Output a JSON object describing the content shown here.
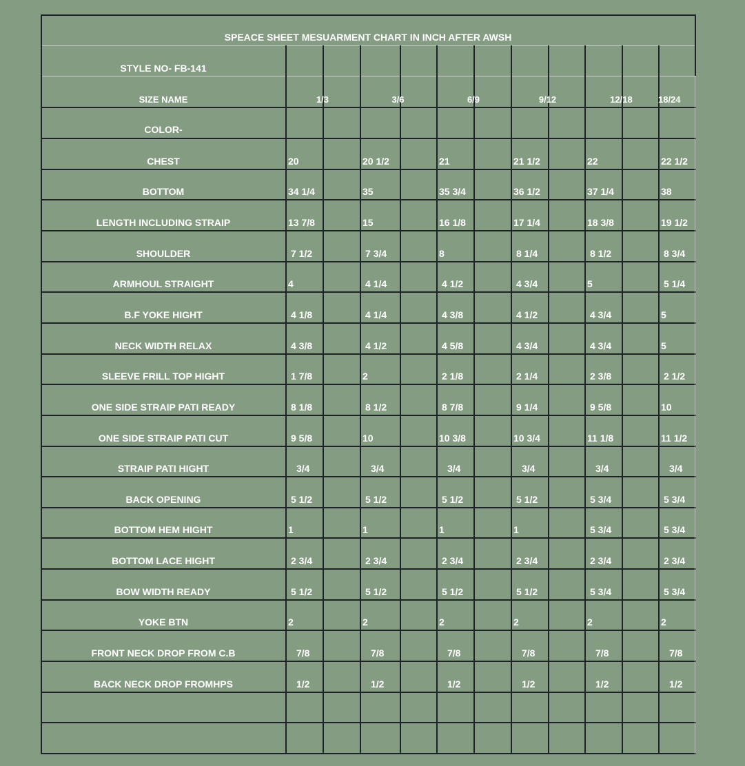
{
  "title": "SPEACE SHEET MESUARMENT CHART IN INCH  AFTER AWSH",
  "style_no": "STYLE NO- FB-141",
  "size_header": "SIZE NAME",
  "sizes": [
    "1/3",
    "3/6",
    "6/9",
    "9/12",
    "12/18",
    "18/24"
  ],
  "color_label": "COLOR-",
  "measurements": [
    {
      "label": "CHEST",
      "values": [
        "20",
        "20 1/2",
        "21",
        "21 1/2",
        "22",
        "22 1/2"
      ]
    },
    {
      "label": "BOTTOM",
      "values": [
        "34 1/4",
        "35",
        "35 3/4",
        "36 1/2",
        "37 1/4",
        "38"
      ]
    },
    {
      "label": "LENGTH INCLUDING STRAIP",
      "values": [
        "13 7/8",
        "15",
        "16 1/8",
        "17 1/4",
        "18 3/8",
        "19 1/2"
      ]
    },
    {
      "label": "SHOULDER",
      "values": [
        "7 1/2",
        "7 3/4",
        "8",
        "8 1/4",
        "8 1/2",
        "8 3/4"
      ]
    },
    {
      "label": "ARMHOUL STRAIGHT",
      "values": [
        "4",
        "4 1/4",
        "4 1/2",
        "4 3/4",
        "5",
        "5 1/4"
      ]
    },
    {
      "label": "B.F YOKE HIGHT",
      "values": [
        "4 1/8",
        "4 1/4",
        "4 3/8",
        "4 1/2",
        "4 3/4",
        "5"
      ]
    },
    {
      "label": "NECK WIDTH RELAX",
      "values": [
        "4 3/8",
        "4 1/2",
        "4 5/8",
        "4 3/4",
        "4 3/4",
        "5"
      ]
    },
    {
      "label": "SLEEVE FRILL TOP HIGHT",
      "values": [
        "1 7/8",
        "2",
        "2 1/8",
        "2 1/4",
        "2 3/8",
        "2 1/2"
      ]
    },
    {
      "label": "ONE SIDE STRAIP PATI READY",
      "values": [
        "8 1/8",
        "8 1/2",
        "8 7/8",
        "9 1/4",
        "9 5/8",
        "10"
      ]
    },
    {
      "label": "ONE SIDE STRAIP PATI CUT",
      "values": [
        "9 5/8",
        "10",
        "10 3/8",
        "10 3/4",
        "11 1/8",
        "11 1/2"
      ]
    },
    {
      "label": "STRAIP PATI HIGHT",
      "values": [
        "3/4",
        "3/4",
        "3/4",
        "3/4",
        "3/4",
        "3/4"
      ]
    },
    {
      "label": "BACK OPENING",
      "values": [
        "5 1/2",
        "5 1/2",
        "5 1/2",
        "5 1/2",
        "5 3/4",
        "5 3/4"
      ]
    },
    {
      "label": "BOTTOM HEM HIGHT",
      "values": [
        "1",
        "1",
        "1",
        "1",
        "5 3/4",
        "5 3/4"
      ]
    },
    {
      "label": "BOTTOM LACE HIGHT",
      "values": [
        "2 3/4",
        "2 3/4",
        "2 3/4",
        "2 3/4",
        "2 3/4",
        "2 3/4"
      ]
    },
    {
      "label": "BOW WIDTH READY",
      "values": [
        "5 1/2",
        "5 1/2",
        "5 1/2",
        "5 1/2",
        "5 3/4",
        "5 3/4"
      ]
    },
    {
      "label": "YOKE BTN",
      "values": [
        "2",
        "2",
        "2",
        "2",
        "2",
        "2"
      ]
    },
    {
      "label": "FRONT NECK DROP FROM C.B",
      "values": [
        "7/8",
        "7/8",
        "7/8",
        "7/8",
        "7/8",
        "7/8"
      ]
    },
    {
      "label": "BACK NECK DROP FROMHPS",
      "values": [
        "1/2",
        "1/2",
        "1/2",
        "1/2",
        "1/2",
        "1/2"
      ]
    }
  ],
  "colors": {
    "background": "#849d82",
    "grid": "#1e2329",
    "text": "#ffffff"
  }
}
